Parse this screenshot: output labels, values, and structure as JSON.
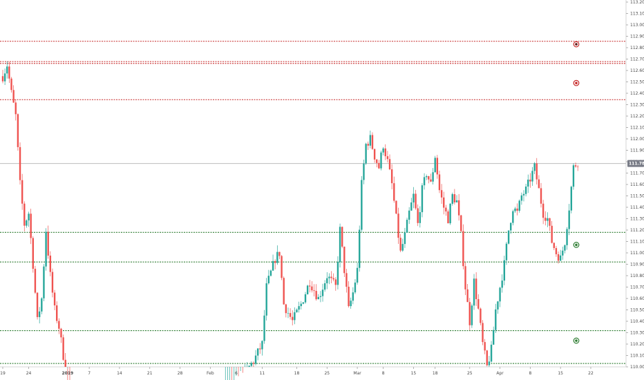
{
  "chart_data": {
    "type": "candlestick",
    "symbol": "",
    "colors": {
      "up": "#26a69a",
      "down": "#ef5350",
      "resistance": "#c62828",
      "support": "#2e7d32",
      "current_price_line": "#bdbdbd",
      "axis_text": "#4a4a4a",
      "badge_bg": "#787b86"
    },
    "y_axis": {
      "min": 110.0,
      "max": 113.2,
      "tick_step": 0.1,
      "tick_labels": [
        "110.000",
        "110.100",
        "110.200",
        "110.300",
        "110.400",
        "110.500",
        "110.600",
        "110.700",
        "110.800",
        "110.900",
        "111.000",
        "111.100",
        "111.200",
        "111.300",
        "111.400",
        "111.500",
        "111.600",
        "111.700",
        "111.800",
        "111.900",
        "112.000",
        "112.100",
        "112.200",
        "112.300",
        "112.400",
        "112.500",
        "112.600",
        "112.700",
        "112.800",
        "112.900",
        "113.000",
        "113.100",
        "113.200"
      ]
    },
    "x_axis": {
      "labels": [
        "19",
        "24",
        "2019",
        "7",
        "14",
        "21",
        "28",
        "Feb",
        "6",
        "11",
        "18",
        "25",
        "Mar",
        "8",
        "15",
        "18",
        "25",
        "Apr",
        "8",
        "15",
        "22"
      ],
      "label_positions_data": [
        0,
        6,
        15,
        20,
        27,
        34,
        41,
        48,
        54,
        60,
        68,
        75,
        82,
        88,
        95,
        100,
        108,
        115,
        122,
        129,
        136
      ]
    },
    "current_price": 111.784,
    "current_price_label": "111.784",
    "horizontal_levels": [
      {
        "value": 112.856,
        "kind": "resistance"
      },
      {
        "value": 112.678,
        "kind": "resistance"
      },
      {
        "value": 112.662,
        "kind": "resistance"
      },
      {
        "value": 112.344,
        "kind": "resistance"
      },
      {
        "value": 111.18,
        "kind": "support"
      },
      {
        "value": 110.92,
        "kind": "support"
      },
      {
        "value": 110.318,
        "kind": "support"
      },
      {
        "value": 110.03,
        "kind": "support"
      }
    ],
    "markers": [
      {
        "value": 112.83,
        "kind": "resistance",
        "filled": true
      },
      {
        "value": 112.49,
        "kind": "resistance",
        "filled": false
      },
      {
        "value": 111.07,
        "kind": "support",
        "filled": false
      },
      {
        "value": 110.23,
        "kind": "support",
        "filled": false
      }
    ],
    "path_points": [
      [
        0,
        112.55
      ],
      [
        1,
        112.65
      ],
      [
        2,
        112.4
      ],
      [
        3,
        112.2
      ],
      [
        4,
        111.6
      ],
      [
        5,
        111.25
      ],
      [
        6,
        111.35
      ],
      [
        7,
        110.9
      ],
      [
        8,
        110.4
      ],
      [
        9,
        110.6
      ],
      [
        10,
        111.2
      ],
      [
        11,
        110.8
      ],
      [
        12,
        110.5
      ],
      [
        13,
        110.35
      ],
      [
        14,
        110.1
      ],
      [
        15,
        109.7
      ],
      [
        16,
        109.5
      ],
      [
        20,
        109.2
      ],
      [
        30,
        109.35
      ],
      [
        40,
        109.25
      ],
      [
        50,
        109.6
      ],
      [
        55,
        109.9
      ],
      [
        58,
        110.05
      ],
      [
        60,
        110.2
      ],
      [
        61,
        110.7
      ],
      [
        63,
        110.95
      ],
      [
        64,
        111.0
      ],
      [
        65,
        110.55
      ],
      [
        67,
        110.4
      ],
      [
        69,
        110.55
      ],
      [
        71,
        110.75
      ],
      [
        73,
        110.6
      ],
      [
        75,
        110.8
      ],
      [
        77,
        110.7
      ],
      [
        78,
        111.2
      ],
      [
        79,
        110.85
      ],
      [
        80,
        110.5
      ],
      [
        81,
        110.65
      ],
      [
        82,
        110.85
      ],
      [
        83,
        111.6
      ],
      [
        84,
        111.95
      ],
      [
        85,
        112.0
      ],
      [
        86,
        111.85
      ],
      [
        87,
        111.75
      ],
      [
        88,
        111.95
      ],
      [
        89,
        111.8
      ],
      [
        90,
        111.6
      ],
      [
        91,
        111.3
      ],
      [
        92,
        111.0
      ],
      [
        93,
        111.15
      ],
      [
        94,
        111.35
      ],
      [
        95,
        111.5
      ],
      [
        96,
        111.25
      ],
      [
        97,
        111.55
      ],
      [
        98,
        111.7
      ],
      [
        99,
        111.6
      ],
      [
        100,
        111.85
      ],
      [
        101,
        111.55
      ],
      [
        102,
        111.4
      ],
      [
        103,
        111.3
      ],
      [
        104,
        111.5
      ],
      [
        105,
        111.45
      ],
      [
        106,
        111.15
      ],
      [
        107,
        110.7
      ],
      [
        108,
        110.4
      ],
      [
        109,
        110.75
      ],
      [
        110,
        110.5
      ],
      [
        111,
        110.2
      ],
      [
        112,
        110.0
      ],
      [
        113,
        110.15
      ],
      [
        114,
        110.5
      ],
      [
        115,
        110.7
      ],
      [
        116,
        110.9
      ],
      [
        117,
        111.2
      ],
      [
        118,
        111.4
      ],
      [
        119,
        111.35
      ],
      [
        120,
        111.5
      ],
      [
        121,
        111.55
      ],
      [
        122,
        111.65
      ],
      [
        123,
        111.75
      ],
      [
        124,
        111.55
      ],
      [
        125,
        111.35
      ],
      [
        126,
        111.3
      ],
      [
        127,
        111.1
      ],
      [
        128,
        111.0
      ],
      [
        129,
        110.95
      ],
      [
        130,
        111.1
      ],
      [
        131,
        111.4
      ],
      [
        132,
        111.75
      ],
      [
        133,
        111.8
      ]
    ]
  }
}
